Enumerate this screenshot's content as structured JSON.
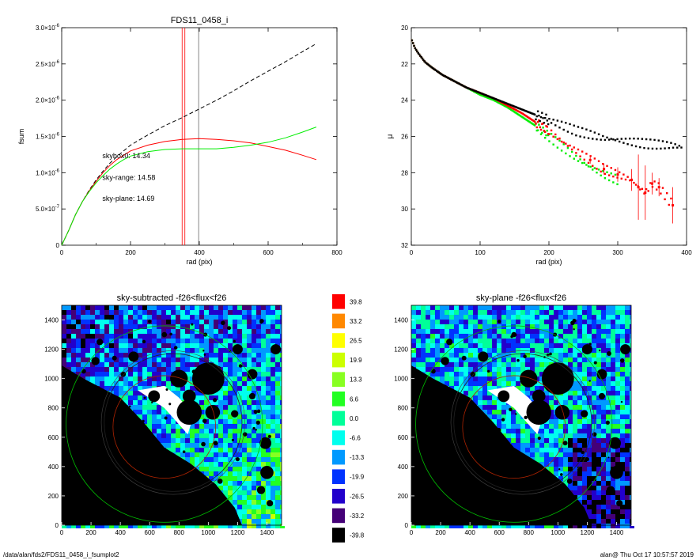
{
  "footer": {
    "left": "/data/alan/fds2/FDS11_0458_i_fsumplot2",
    "right": "alan@  Thu Oct 17 10:57:57 2019"
  },
  "colors": {
    "black": "#000000",
    "red": "#ff0000",
    "green": "#00ee00",
    "gray": "#666666"
  },
  "chart_data": [
    {
      "type": "line",
      "title": "FDS11_0458_i",
      "xlabel": "rad (pix)",
      "ylabel": "fsum",
      "xlim": [
        0,
        800
      ],
      "ylim": [
        0,
        3e-06
      ],
      "xticks": [
        0,
        200,
        400,
        600,
        800
      ],
      "xtick_labels": [
        "0",
        "200",
        "400",
        "600",
        "800"
      ],
      "yticks": [
        0,
        5e-07,
        1e-06,
        1.5e-06,
        2e-06,
        2.5e-06,
        3e-06
      ],
      "ytick_labels": [
        {
          "base": "0",
          "exp": ""
        },
        {
          "base": "5.0×10",
          "exp": "-7"
        },
        {
          "base": "1.0×10",
          "exp": "-6"
        },
        {
          "base": "1.5×10",
          "exp": "-6"
        },
        {
          "base": "2.0×10",
          "exp": "-6"
        },
        {
          "base": "2.5×10",
          "exp": "-6"
        },
        {
          "base": "3.0×10",
          "exp": "-6"
        }
      ],
      "vlines": [
        {
          "x": 350,
          "color": "#ff0000"
        },
        {
          "x": 358,
          "color": "#ff0000"
        },
        {
          "x": 398,
          "color": "#666666"
        }
      ],
      "annotations": [
        {
          "text": "skybox0: 14.34",
          "color": "#000000",
          "x": 210,
          "y": 1.2e-06
        },
        {
          "text": "sky-range: 14.58",
          "color": "#ff0000",
          "x": 210,
          "y": 9e-07
        },
        {
          "text": "sky-plane: 14.69",
          "color": "#00dd00",
          "x": 210,
          "y": 6.1e-07
        }
      ],
      "series": [
        {
          "color": "#000000",
          "dash": true,
          "x": [
            0,
            20,
            40,
            60,
            80,
            100,
            120,
            140,
            160,
            180,
            200,
            250,
            300,
            350,
            400,
            450,
            500,
            550,
            600,
            650,
            700,
            740
          ],
          "y": [
            0,
            2e-07,
            4.2e-07,
            6e-07,
            7.6e-07,
            9e-07,
            1.02e-06,
            1.13e-06,
            1.22e-06,
            1.3e-06,
            1.38e-06,
            1.52e-06,
            1.65e-06,
            1.76e-06,
            1.88e-06,
            2e-06,
            2.13e-06,
            2.27e-06,
            2.4e-06,
            2.53e-06,
            2.67e-06,
            2.78e-06
          ]
        },
        {
          "color": "#ff0000",
          "dash": false,
          "x": [
            0,
            20,
            40,
            60,
            80,
            100,
            120,
            140,
            160,
            180,
            200,
            250,
            300,
            350,
            400,
            450,
            500,
            550,
            600,
            650,
            700,
            740
          ],
          "y": [
            0,
            2e-07,
            4.2e-07,
            6e-07,
            7.5e-07,
            8.8e-07,
            1e-06,
            1.1e-06,
            1.18e-06,
            1.24e-06,
            1.3e-06,
            1.38e-06,
            1.43e-06,
            1.46e-06,
            1.47e-06,
            1.46e-06,
            1.44e-06,
            1.41e-06,
            1.36e-06,
            1.31e-06,
            1.24e-06,
            1.18e-06
          ]
        },
        {
          "color": "#00ee00",
          "dash": false,
          "x": [
            0,
            20,
            40,
            60,
            80,
            100,
            120,
            140,
            160,
            180,
            200,
            250,
            300,
            350,
            400,
            450,
            500,
            550,
            600,
            650,
            700,
            740
          ],
          "y": [
            0,
            2e-07,
            4.2e-07,
            6e-07,
            7.4e-07,
            8.6e-07,
            9.6e-07,
            1.05e-06,
            1.12e-06,
            1.18e-06,
            1.23e-06,
            1.29e-06,
            1.32e-06,
            1.33e-06,
            1.33e-06,
            1.33e-06,
            1.35e-06,
            1.38e-06,
            1.42e-06,
            1.48e-06,
            1.56e-06,
            1.63e-06
          ]
        }
      ]
    },
    {
      "type": "scatter",
      "title": "",
      "xlabel": "rad (pix)",
      "ylabel": "μ",
      "xlim": [
        0,
        400
      ],
      "ylim": [
        32,
        20
      ],
      "xticks": [
        0,
        100,
        200,
        300,
        400
      ],
      "xtick_labels": [
        "0",
        "100",
        "200",
        "300",
        "400"
      ],
      "yticks": [
        20,
        22,
        24,
        26,
        28,
        30,
        32
      ],
      "ytick_labels": [
        "20",
        "22",
        "24",
        "26",
        "28",
        "30",
        "32"
      ],
      "series": [
        {
          "color": "#000000",
          "x": [
            1,
            5,
            10,
            20,
            30,
            45,
            60,
            80,
            100,
            120,
            140,
            160,
            180,
            200,
            220,
            240,
            260,
            280,
            300,
            320,
            340,
            360,
            380,
            395
          ],
          "y": [
            20.7,
            21.1,
            21.4,
            21.9,
            22.2,
            22.6,
            22.9,
            23.3,
            23.6,
            23.9,
            24.2,
            24.5,
            24.8,
            25.1,
            25.4,
            25.7,
            25.9,
            26.1,
            26.2,
            26.3,
            26.4,
            26.45,
            26.5,
            26.6
          ]
        },
        {
          "color": "#ff0000",
          "x": [
            1,
            5,
            10,
            20,
            30,
            45,
            60,
            80,
            100,
            120,
            140,
            160,
            180,
            200,
            220,
            240,
            260,
            280,
            300,
            320,
            330,
            340,
            350,
            360,
            380
          ],
          "y": [
            20.7,
            21.1,
            21.4,
            21.9,
            22.2,
            22.6,
            22.9,
            23.3,
            23.6,
            23.9,
            24.3,
            24.7,
            25.2,
            25.7,
            26.3,
            26.8,
            27.3,
            27.8,
            28.1,
            28.4,
            28.8,
            29.1,
            28.6,
            28.8,
            29.8
          ],
          "yerr": [
            0,
            0,
            0,
            0,
            0,
            0,
            0,
            0,
            0,
            0,
            0,
            0,
            0,
            0,
            0,
            0,
            0.2,
            0.3,
            0.4,
            0.6,
            1.8,
            1.5,
            0.6,
            0.5,
            1.0
          ]
        },
        {
          "color": "#00ee00",
          "x": [
            1,
            5,
            10,
            20,
            30,
            45,
            60,
            80,
            100,
            120,
            140,
            160,
            180,
            200,
            220,
            240,
            260,
            280,
            300
          ],
          "y": [
            20.7,
            21.1,
            21.4,
            21.9,
            22.2,
            22.6,
            22.9,
            23.3,
            23.7,
            24.0,
            24.4,
            24.9,
            25.4,
            26.0,
            26.6,
            27.2,
            27.7,
            28.1,
            28.4
          ]
        }
      ]
    },
    {
      "type": "heatmap",
      "title": "sky-subtracted -f26<flux<f26",
      "xlim": [
        0,
        1500
      ],
      "ylim": [
        0,
        1500
      ],
      "xticks": [
        0,
        200,
        400,
        600,
        800,
        1000,
        1200,
        1400
      ],
      "xtick_labels": [
        "0",
        "200",
        "400",
        "600",
        "800",
        "1000",
        "1200",
        "1400"
      ],
      "yticks": [
        0,
        200,
        400,
        600,
        800,
        1000,
        1200,
        1400
      ],
      "ytick_labels": [
        "0",
        "200",
        "400",
        "600",
        "800",
        "1000",
        "1200",
        "1400"
      ]
    },
    {
      "type": "heatmap",
      "title": "sky-plane -f26<flux<f26",
      "xlim": [
        0,
        1500
      ],
      "ylim": [
        0,
        1500
      ],
      "xticks": [
        0,
        200,
        400,
        600,
        800,
        1000,
        1200,
        1400
      ],
      "xtick_labels": [
        "0",
        "200",
        "400",
        "600",
        "800",
        "1000",
        "1200",
        "1400"
      ],
      "yticks": [
        0,
        200,
        400,
        600,
        800,
        1000,
        1200,
        1400
      ],
      "ytick_labels": [
        "0",
        "200",
        "400",
        "600",
        "800",
        "1000",
        "1200",
        "1400"
      ]
    }
  ],
  "colorbar": {
    "labels": [
      "39.8",
      "33.2",
      "26.5",
      "19.9",
      "13.3",
      "6.6",
      "0.0",
      "-6.6",
      "-13.3",
      "-19.9",
      "-26.5",
      "-33.2",
      "-39.8"
    ],
    "colors": [
      "#ff0000",
      "#ff8800",
      "#ffff00",
      "#ccff00",
      "#88ff22",
      "#22ff22",
      "#00ff99",
      "#00ffee",
      "#0099ff",
      "#0033ff",
      "#2200cc",
      "#440077",
      "#000000"
    ]
  }
}
